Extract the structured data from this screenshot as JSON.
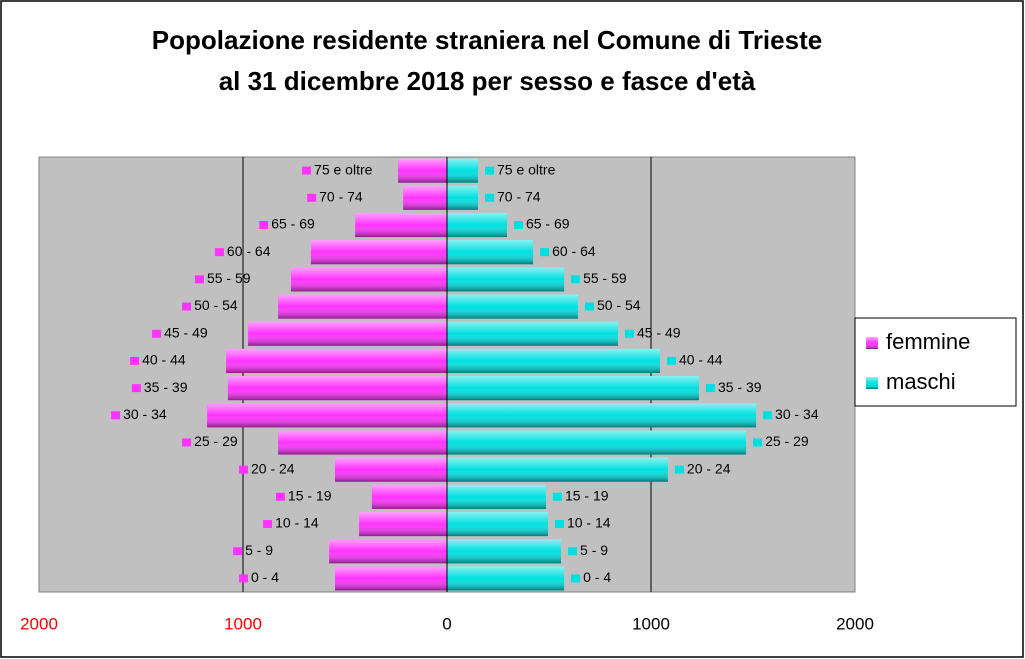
{
  "chart_data": {
    "type": "pyramid",
    "title": [
      "Popolazione residente straniera nel Comune di Trieste",
      "al 31 dicembre 2018 per sesso e fasce d'età"
    ],
    "categories": [
      "0 - 4",
      "5 - 9",
      "10 - 14",
      "15 - 19",
      "20 - 24",
      "25 - 29",
      "30 - 34",
      "35 - 39",
      "40 - 44",
      "45 - 49",
      "50 - 54",
      "55 - 59",
      "60 - 64",
      "65 - 69",
      "70 - 74",
      "75 e oltre"
    ],
    "series": [
      {
        "name": "femmine",
        "color": "#ff33ff",
        "values": [
          -549,
          -578,
          -431,
          -368,
          -549,
          -828,
          -1176,
          -1074,
          -1083,
          -975,
          -828,
          -765,
          -667,
          -450,
          -215,
          -240
        ]
      },
      {
        "name": "maschi",
        "color": "#00e0e0",
        "values": [
          574,
          559,
          495,
          485,
          1083,
          1466,
          1515,
          1235,
          1044,
          838,
          642,
          574,
          422,
          294,
          152,
          152
        ]
      }
    ],
    "xlim": [
      -2000,
      2000
    ],
    "xticks": [
      {
        "value": -2000,
        "label": "2000"
      },
      {
        "value": -1000,
        "label": "1000"
      },
      0,
      1000,
      2000
    ],
    "grid": true,
    "legend": "right"
  }
}
